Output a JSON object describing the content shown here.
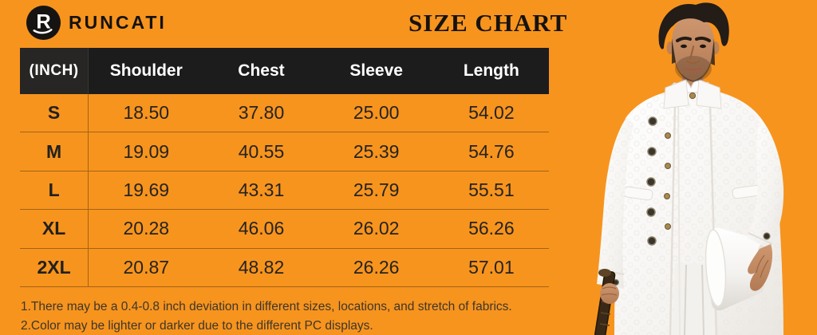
{
  "brand": {
    "name": "RUNCATI",
    "logo_icon": "runcati-r-monogram",
    "logo_letter": "R"
  },
  "title": "SIZE CHART",
  "table": {
    "unit_label": "(INCH)",
    "columns": [
      "Shoulder",
      "Chest",
      "Sleeve",
      "Length"
    ],
    "rows": [
      {
        "size": "S",
        "values": [
          "18.50",
          "37.80",
          "25.00",
          "54.02"
        ]
      },
      {
        "size": "M",
        "values": [
          "19.09",
          "40.55",
          "25.39",
          "54.76"
        ]
      },
      {
        "size": "L",
        "values": [
          "19.69",
          "43.31",
          "25.79",
          "55.51"
        ]
      },
      {
        "size": "XL",
        "values": [
          "20.28",
          "46.06",
          "26.02",
          "56.26"
        ]
      },
      {
        "size": "2XL",
        "values": [
          "20.87",
          "48.82",
          "26.26",
          "57.01"
        ]
      }
    ]
  },
  "notes": [
    "1.There may be a 0.4-0.8 inch deviation in different sizes, locations, and stretch of fabrics.",
    "2.Color may be lighter or darker due to the different PC displays."
  ],
  "colors": {
    "background": "#F7941E",
    "table_header_bg": "#1C1C1C",
    "table_header_text": "#FFFFFF",
    "body_text": "#22201C"
  },
  "illustration": {
    "name": "model-photo",
    "description": "Man in ornate white high-collar jacket holding a white top hat and a dark cane"
  }
}
